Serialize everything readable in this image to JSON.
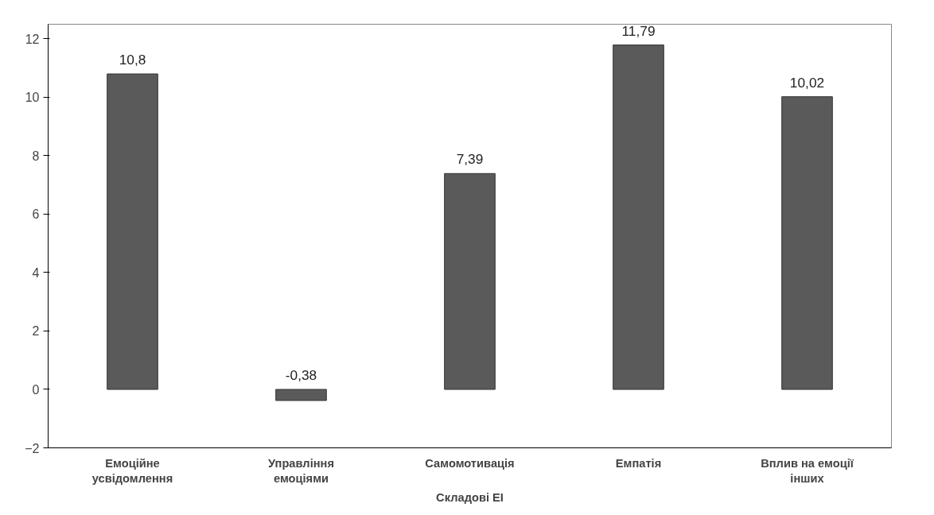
{
  "chart_data": {
    "type": "bar",
    "xlabel": "Складові ЕІ",
    "categories": [
      "Емоційне усвідомлення",
      "Управління емоціями",
      "Самомотивація",
      "Емпатія",
      "Вплив на емоції інших"
    ],
    "values": [
      10.8,
      -0.38,
      7.39,
      11.79,
      10.02
    ],
    "value_labels": [
      "10,8",
      "-0,38",
      "7,39",
      "11,79",
      "10,02"
    ],
    "color": "#5a5a5a",
    "ylim": [
      -2,
      12.5
    ],
    "yticks": [
      -2,
      0,
      2,
      4,
      6,
      8,
      10,
      12
    ],
    "grid": false
  }
}
